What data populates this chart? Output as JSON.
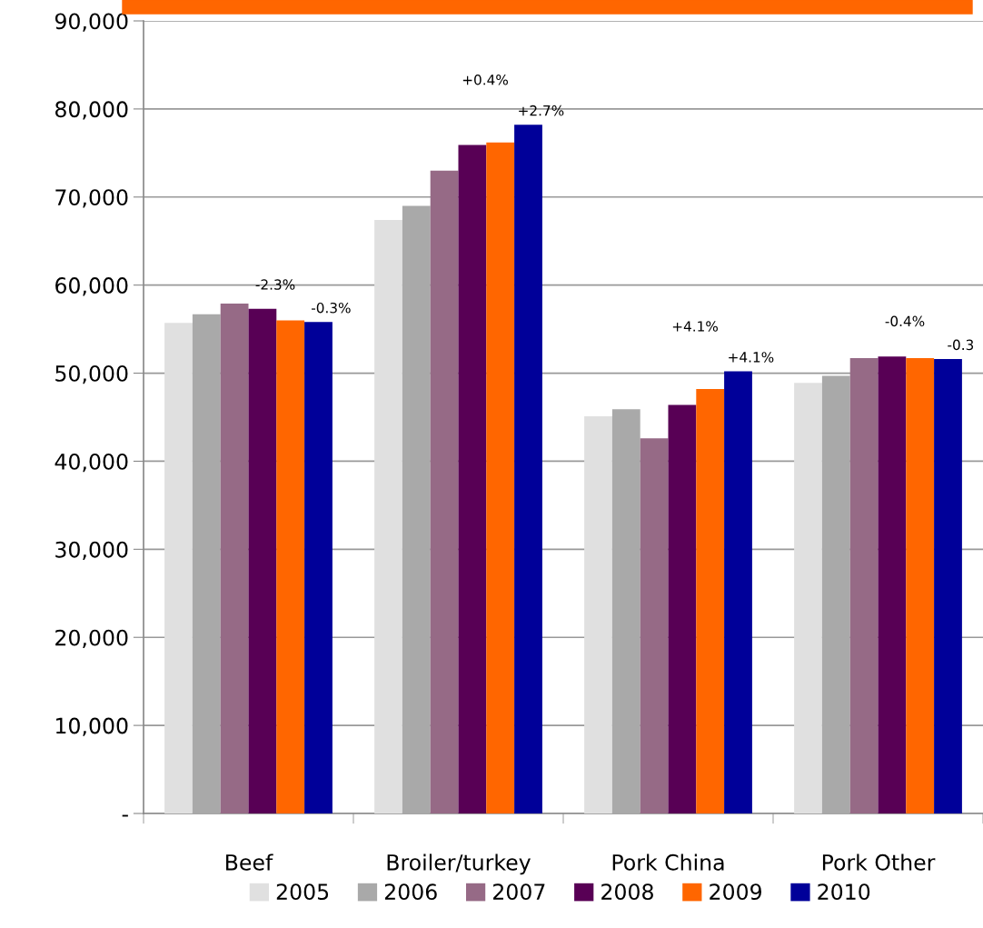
{
  "chart_data": {
    "type": "bar",
    "categories": [
      "Beef",
      "Broiler/turkey",
      "Pork China",
      "Pork Other"
    ],
    "series": [
      {
        "name": "2005",
        "color": "#e0e0e0",
        "values": [
          55700,
          67400,
          45100,
          48900
        ]
      },
      {
        "name": "2006",
        "color": "#a9a9a9",
        "values": [
          56700,
          69000,
          45900,
          49700
        ]
      },
      {
        "name": "2007",
        "color": "#966a86",
        "values": [
          57900,
          73000,
          42600,
          51700
        ]
      },
      {
        "name": "2008",
        "color": "#580055",
        "values": [
          57300,
          75900,
          46400,
          51900
        ]
      },
      {
        "name": "2009",
        "color": "#ff6600",
        "values": [
          56000,
          76200,
          48200,
          51700
        ]
      },
      {
        "name": "2010",
        "color": "#000099",
        "values": [
          55800,
          78200,
          50200,
          51600
        ]
      }
    ],
    "annotations": [
      "-2.3%",
      "-0.3%",
      "+0.4%",
      "+2.7%",
      "+4.1%",
      "+4.1%",
      "-0.4%",
      "-0.3"
    ],
    "ylim": [
      0,
      90000
    ],
    "yticks": [
      {
        "value": 0,
        "label": "-"
      },
      {
        "value": 10000,
        "label": "10,000"
      },
      {
        "value": 20000,
        "label": "20,000"
      },
      {
        "value": 30000,
        "label": "30,000"
      },
      {
        "value": 40000,
        "label": "40,000"
      },
      {
        "value": 50000,
        "label": "50,000"
      },
      {
        "value": 60000,
        "label": "60,000"
      },
      {
        "value": 70000,
        "label": "70,000"
      },
      {
        "value": 80000,
        "label": "80,000"
      },
      {
        "value": 90000,
        "label": "90,000"
      }
    ],
    "grid": "y",
    "legend": "bottom"
  }
}
